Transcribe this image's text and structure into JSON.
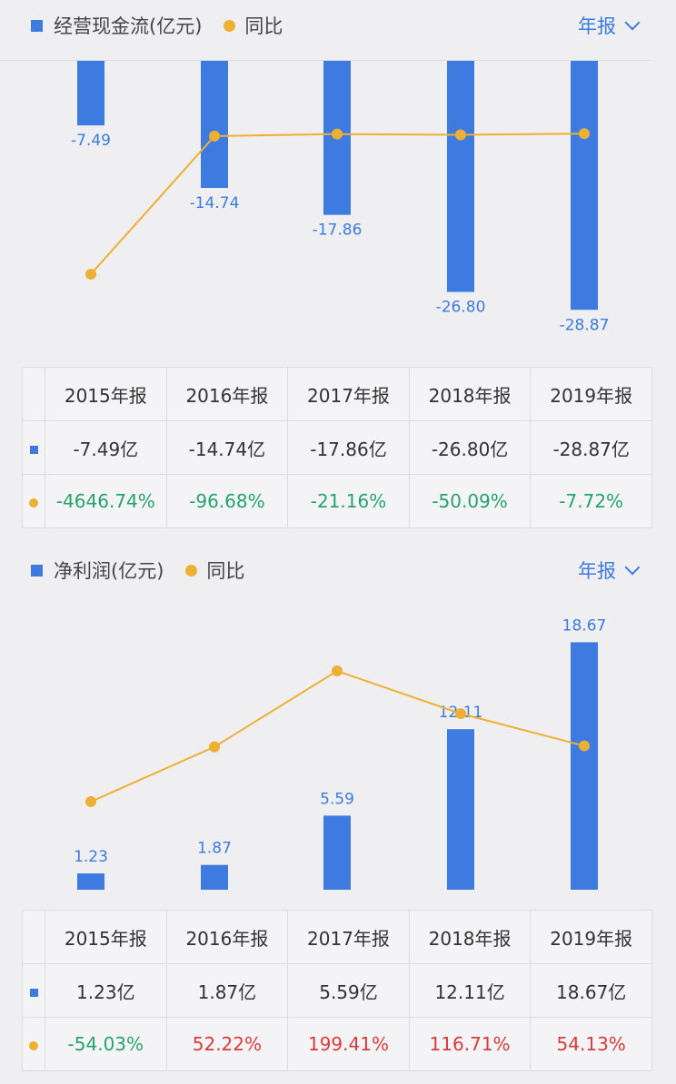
{
  "charts": [
    {
      "legend": {
        "bar_label": "经营现金流(亿元)",
        "line_label": "同比"
      },
      "period_label": "年报",
      "columns": [
        "2015年报",
        "2016年报",
        "2017年报",
        "2018年报",
        "2019年报"
      ],
      "bar_labels": [
        "-7.49",
        "-14.74",
        "-17.86",
        "-26.80",
        "-28.87"
      ],
      "table_values": [
        "-7.49亿",
        "-14.74亿",
        "-17.86亿",
        "-26.80亿",
        "-28.87亿"
      ],
      "table_yoy": [
        "-4646.74%",
        "-96.68%",
        "-21.16%",
        "-50.09%",
        "-7.72%"
      ]
    },
    {
      "legend": {
        "bar_label": "净利润(亿元)",
        "line_label": "同比"
      },
      "period_label": "年报",
      "columns": [
        "2015年报",
        "2016年报",
        "2017年报",
        "2018年报",
        "2019年报"
      ],
      "bar_labels": [
        "1.23",
        "1.87",
        "5.59",
        "12.11",
        "18.67"
      ],
      "table_values": [
        "1.23亿",
        "1.87亿",
        "5.59亿",
        "12.11亿",
        "18.67亿"
      ],
      "table_yoy": [
        "-54.03%",
        "52.22%",
        "199.41%",
        "116.71%",
        "54.13%"
      ]
    }
  ],
  "colors": {
    "bar": "#3d7be0",
    "line": "#eeb032",
    "positive": "#d93a3a",
    "negative": "#27a36a"
  },
  "chart_data": [
    {
      "type": "bar",
      "categories": [
        "2015年报",
        "2016年报",
        "2017年报",
        "2018年报",
        "2019年报"
      ],
      "series": [
        {
          "name": "经营现金流(亿元)",
          "type": "bar",
          "values": [
            -7.49,
            -14.74,
            -17.86,
            -26.8,
            -28.87
          ]
        },
        {
          "name": "同比",
          "type": "line",
          "values": [
            -4646.74,
            -96.68,
            -21.16,
            -50.09,
            -7.72
          ]
        }
      ]
    },
    {
      "type": "bar",
      "categories": [
        "2015年报",
        "2016年报",
        "2017年报",
        "2018年报",
        "2019年报"
      ],
      "series": [
        {
          "name": "净利润(亿元)",
          "type": "bar",
          "values": [
            1.23,
            1.87,
            5.59,
            12.11,
            18.67
          ]
        },
        {
          "name": "同比",
          "type": "line",
          "values": [
            -54.03,
            52.22,
            199.41,
            116.71,
            54.13
          ]
        }
      ]
    }
  ]
}
